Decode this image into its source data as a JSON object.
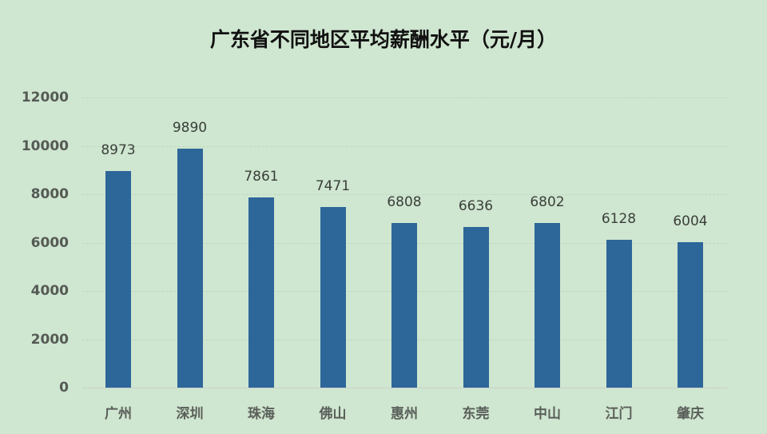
{
  "chart_data": {
    "type": "bar",
    "title": "广东省不同地区平均薪酬水平（元/月）",
    "xlabel": "",
    "ylabel": "",
    "categories": [
      "广州",
      "深圳",
      "珠海",
      "佛山",
      "惠州",
      "东莞",
      "中山",
      "江门",
      "肇庆"
    ],
    "values": [
      8973,
      9890,
      7861,
      7471,
      6808,
      6636,
      6802,
      6128,
      6004
    ],
    "ylim": [
      0,
      12000
    ],
    "yticks": [
      0,
      2000,
      4000,
      6000,
      8000,
      10000,
      12000
    ],
    "grid": true,
    "legend": null,
    "data_labels": true,
    "colors": {
      "bar": "#2d6699",
      "background": "#cfe6d0",
      "title": "#111111",
      "tick_label": "#555a55"
    }
  }
}
